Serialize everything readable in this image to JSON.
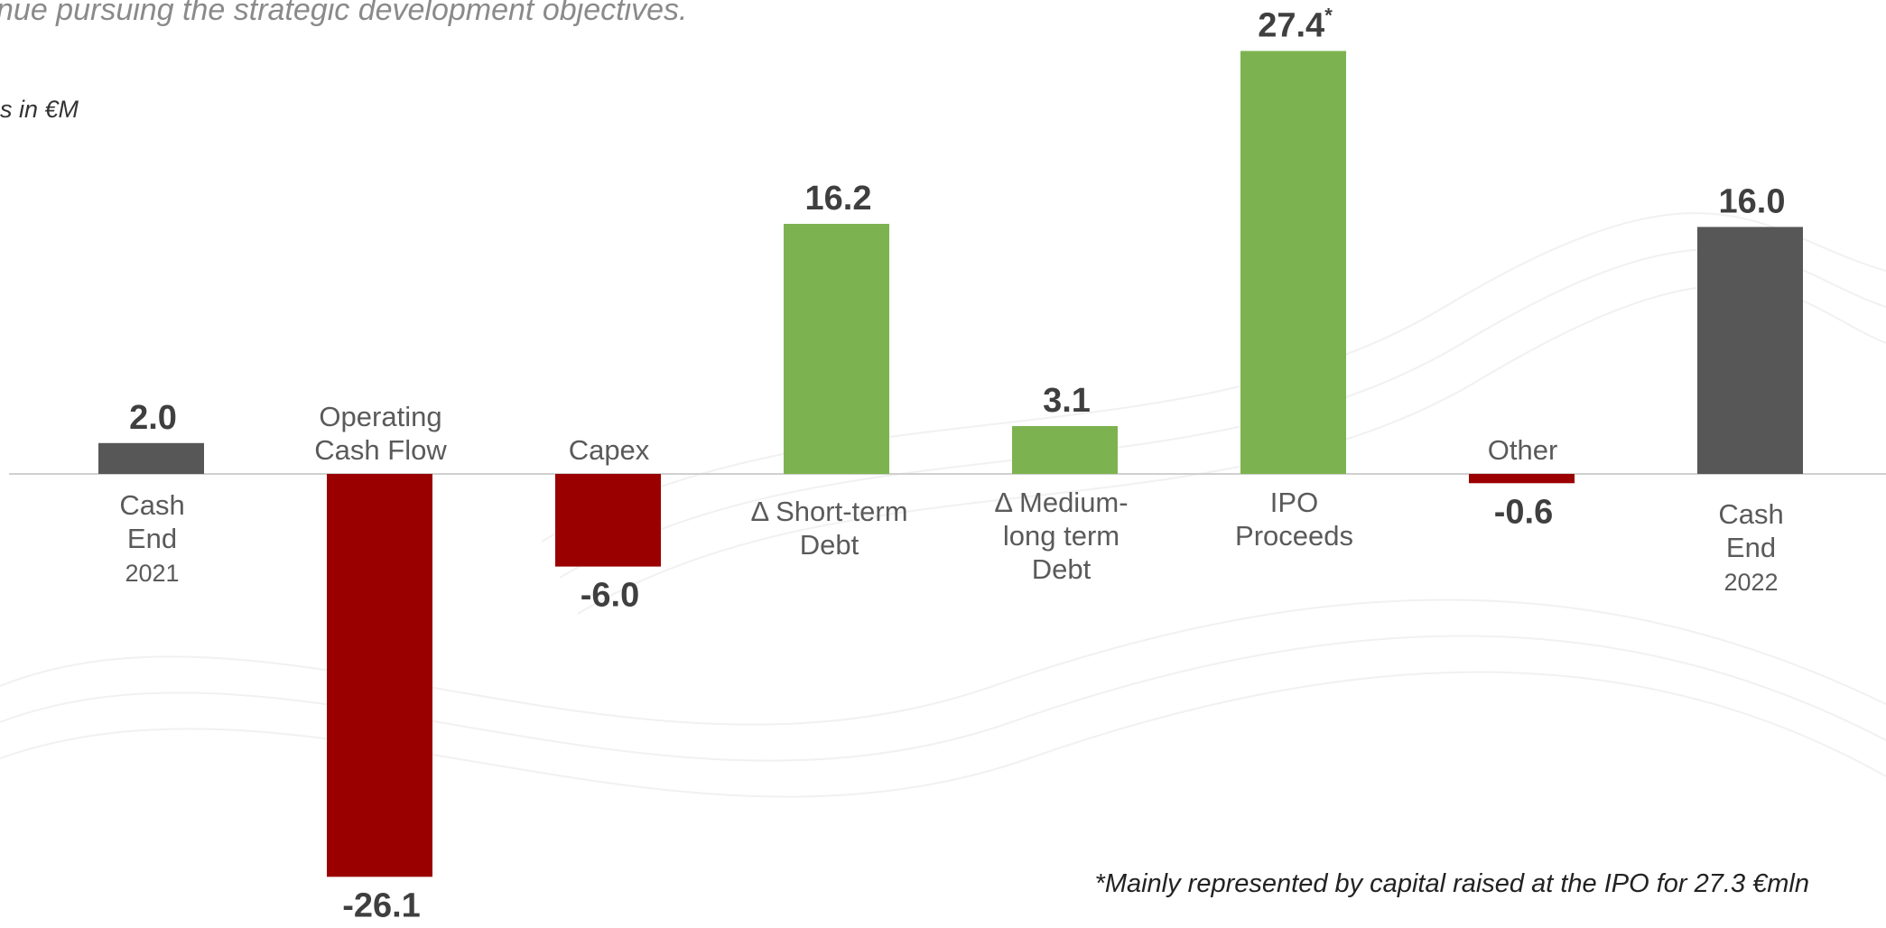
{
  "header": {
    "subtitle": "nue pursuing the strategic development objectives.",
    "unit_note": "s in €M"
  },
  "footnote": "*Mainly represented by capital raised at the IPO for 27.3 €mln",
  "colors": {
    "total": "#575757",
    "positive": "#7cb350",
    "negative": "#9a0000",
    "axis": "#d0d0d0"
  },
  "chart_data": {
    "type": "bar",
    "subtype": "waterfall-deltas",
    "unit": "€M",
    "categories": [
      "Cash End 2021",
      "Operating Cash Flow",
      "Capex",
      "Δ Short-term Debt",
      "Δ Medium-long term Debt",
      "IPO Proceeds",
      "Other",
      "Cash End 2022"
    ],
    "values": [
      2.0,
      -26.1,
      -6.0,
      16.2,
      3.1,
      27.4,
      -0.6,
      16.0
    ],
    "value_labels": [
      "2.0",
      "-26.1",
      "-6.0",
      "16.2",
      "3.1",
      "27.4",
      "-0.6",
      "16.0"
    ],
    "value_label_suffix": [
      "",
      "",
      "",
      "",
      "",
      "*",
      "",
      ""
    ],
    "kinds": [
      "total",
      "negative",
      "negative",
      "positive",
      "positive",
      "positive",
      "negative",
      "total"
    ],
    "category_lines": [
      [
        "Cash",
        "End",
        "2021"
      ],
      [
        "Operating",
        "Cash Flow"
      ],
      [
        "Capex"
      ],
      [
        "Δ Short-term",
        "Debt"
      ],
      [
        "Δ Medium-",
        "long term",
        "Debt"
      ],
      [
        "IPO",
        "Proceeds"
      ],
      [
        "Other"
      ],
      [
        "Cash",
        "End",
        "2022"
      ]
    ],
    "ylim": [
      -26.1,
      27.4
    ],
    "grid": false,
    "legend": "none"
  }
}
